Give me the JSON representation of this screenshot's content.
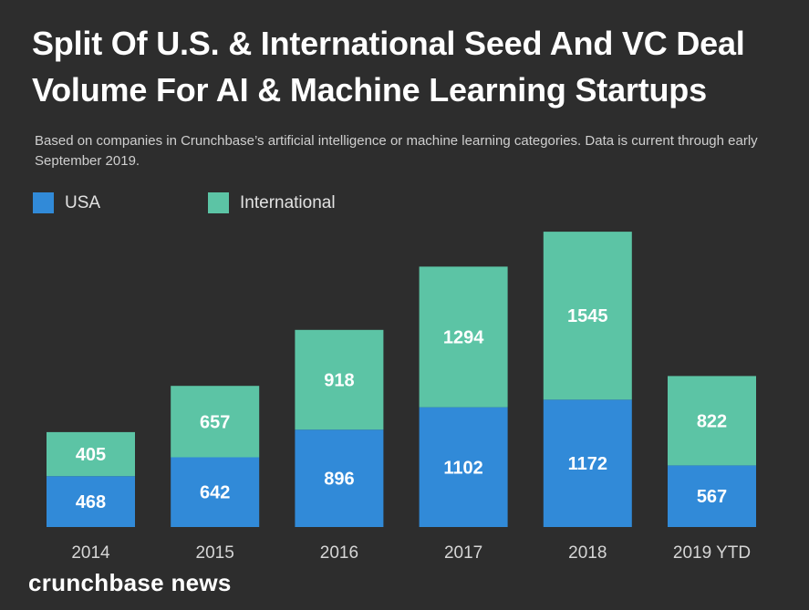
{
  "header": {
    "title": "Split Of U.S. & International Seed And VC Deal Volume For AI & Machine Learning Startups",
    "subtitle": "Based on companies in Crunchbase’s artificial intelligence or machine learning categories. Data is current through early September 2019."
  },
  "legend": {
    "usa": "USA",
    "international": "International"
  },
  "brand": {
    "label": "crunchbase news"
  },
  "colors": {
    "background": "#2d2d2d",
    "usa": "#318ad8",
    "international": "#5cc4a5",
    "label": "#ffffff",
    "axis_text": "#d6d6d6"
  },
  "chart_data": {
    "type": "bar",
    "stacked": true,
    "categories": [
      "2014",
      "2015",
      "2016",
      "2017",
      "2018",
      "2019 YTD"
    ],
    "series": [
      {
        "name": "USA",
        "values": [
          468,
          642,
          896,
          1102,
          1172,
          567
        ]
      },
      {
        "name": "International",
        "values": [
          405,
          657,
          918,
          1294,
          1545,
          822
        ]
      }
    ],
    "title": "Split Of U.S. & International Seed And VC Deal Volume For AI & Machine Learning Startups",
    "xlabel": "",
    "ylabel": "",
    "grid": false,
    "legend_position": "top-left",
    "data_labels": true
  }
}
